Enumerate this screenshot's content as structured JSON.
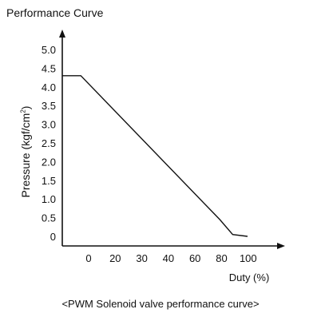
{
  "chart_data": {
    "type": "line",
    "title": "Performance Curve",
    "xlabel": "Duty (%)",
    "ylabel": "Pressure (kgf/cm",
    "ylabel_superscript": "2",
    "ylabel_suffix": ")",
    "caption": "<PWM Solenoid valve performance curve>",
    "x_tick_labels": [
      "0",
      "20",
      "30",
      "40",
      "60",
      "80",
      "100"
    ],
    "y_tick_labels": [
      "0",
      "0.5",
      "1.0",
      "1.5",
      "2.0",
      "2.5",
      "3.0",
      "3.5",
      "4.0",
      "4.5",
      "5.0"
    ],
    "ylim": [
      0,
      5.0
    ],
    "grid": false,
    "series": [
      {
        "points": [
          {
            "x": 0,
            "y": 4.3
          },
          {
            "x": 10,
            "y": 4.3
          },
          {
            "x": 85,
            "y": 0.45
          },
          {
            "x": 92,
            "y": 0.05
          },
          {
            "x": 100,
            "y": 0
          }
        ]
      }
    ]
  },
  "colors": {
    "ink": "#111111",
    "background": "#ffffff"
  }
}
